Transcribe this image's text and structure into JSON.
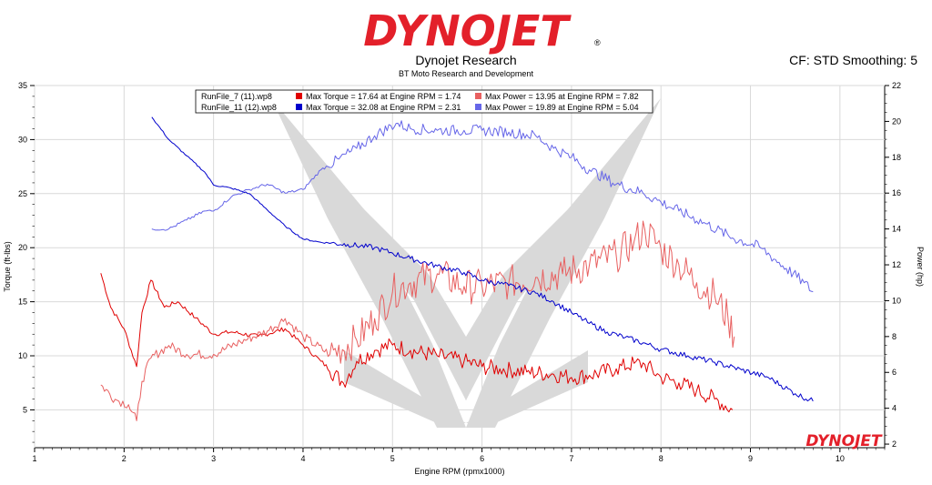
{
  "brand": {
    "logo_text": "DYNOJET",
    "registered_mark": "®",
    "watermark_text": "DYNOJET"
  },
  "header": {
    "title": "Dynojet Research",
    "subtitle": "BT Moto Research and Development",
    "correction_info": "CF: STD Smoothing: 5"
  },
  "colors": {
    "run7_torque": "#e00000",
    "run7_power": "#e86060",
    "run11_torque": "#0000cc",
    "run11_power": "#6666e8",
    "watermark": "#d6d6d6",
    "grid": "#d9d9d9",
    "logo_red": "#e3202a"
  },
  "legend": [
    {
      "file": "RunFile_7 (11).wp8",
      "torque_label": "Max Torque = 17.64 at Engine RPM = 1.74",
      "power_label": "Max Power = 13.95 at Engine RPM = 7.82"
    },
    {
      "file": "RunFile_11 (12).wp8",
      "torque_label": "Max Torque = 32.08 at Engine RPM = 2.31",
      "power_label": "Max Power = 19.89 at Engine RPM = 5.04"
    }
  ],
  "chart_data": {
    "type": "line",
    "title": "Dynojet Research",
    "subtitle": "BT Moto Research and Development",
    "xlabel": "Engine RPM (rpmx1000)",
    "ylabel": "Torque (ft-lbs)",
    "y2label": "Power (hp)",
    "xlim": [
      1,
      10.5
    ],
    "ylim": [
      1.5,
      35
    ],
    "y2lim": [
      1.8,
      22
    ],
    "x_ticks": [
      "1",
      "2",
      "3",
      "4",
      "5",
      "6",
      "7",
      "8",
      "9",
      "10"
    ],
    "y_ticks": [
      "5",
      "10",
      "15",
      "20",
      "25",
      "30",
      "35"
    ],
    "y2_ticks": [
      "2",
      "4",
      "6",
      "8",
      "10",
      "12",
      "14",
      "16",
      "18",
      "20",
      "22"
    ],
    "grid": true,
    "legend_position": "top-left",
    "series": [
      {
        "name": "RunFile_7 (11).wp8",
        "metric": "Max Torque",
        "axis": "left",
        "x": [
          1.74,
          1.85,
          2.0,
          2.14,
          2.2,
          2.3,
          2.45,
          2.6,
          2.8,
          3.0,
          3.2,
          3.5,
          3.8,
          4.0,
          4.2,
          4.45,
          4.6,
          4.8,
          5.0,
          5.2,
          5.5,
          5.8,
          6.0,
          6.2,
          6.5,
          6.8,
          7.0,
          7.2,
          7.5,
          7.7,
          7.82,
          8.0,
          8.2,
          8.4,
          8.6,
          8.8
        ],
        "values": [
          17.64,
          14.5,
          12.5,
          9.0,
          14.0,
          17.0,
          14.5,
          15.0,
          13.5,
          12.0,
          12.2,
          11.8,
          12.5,
          11.0,
          9.5,
          7.5,
          9.5,
          10.5,
          11.0,
          10.5,
          10.0,
          9.5,
          9.0,
          8.8,
          8.5,
          8.3,
          8.0,
          8.2,
          8.8,
          9.3,
          9.2,
          8.0,
          7.5,
          6.8,
          6.0,
          5.0
        ]
      },
      {
        "name": "RunFile_7 (11).wp8",
        "metric": "Max Power",
        "axis": "right",
        "x": [
          1.74,
          1.9,
          2.05,
          2.14,
          2.2,
          2.3,
          2.5,
          2.7,
          3.0,
          3.3,
          3.6,
          3.8,
          4.0,
          4.3,
          4.6,
          4.8,
          5.0,
          5.2,
          5.5,
          5.8,
          6.0,
          6.3,
          6.6,
          6.9,
          7.2,
          7.5,
          7.7,
          7.82,
          8.0,
          8.2,
          8.4,
          8.6,
          8.75,
          8.82
        ],
        "values": [
          5.3,
          4.5,
          4.2,
          3.3,
          5.5,
          6.8,
          7.5,
          7.0,
          7.0,
          7.7,
          8.3,
          9.0,
          8.0,
          7.0,
          7.8,
          9.0,
          10.5,
          11.0,
          11.5,
          10.8,
          10.8,
          11.0,
          11.3,
          11.5,
          12.0,
          12.5,
          13.3,
          13.95,
          12.9,
          12.0,
          11.0,
          10.3,
          9.0,
          8.0
        ]
      },
      {
        "name": "RunFile_11 (12).wp8",
        "metric": "Max Torque",
        "axis": "left",
        "x": [
          2.31,
          2.5,
          2.7,
          2.9,
          3.0,
          3.2,
          3.4,
          3.6,
          3.8,
          4.0,
          4.2,
          4.5,
          4.8,
          5.0,
          5.2,
          5.5,
          5.8,
          6.0,
          6.3,
          6.6,
          6.8,
          7.0,
          7.2,
          7.4,
          7.6,
          7.8,
          8.0,
          8.3,
          8.6,
          8.9,
          9.2,
          9.5,
          9.7
        ],
        "values": [
          32.08,
          30.0,
          28.5,
          27.0,
          25.8,
          25.5,
          25.0,
          23.5,
          22.0,
          20.8,
          20.5,
          20.3,
          20.0,
          19.5,
          19.0,
          18.3,
          17.7,
          17.0,
          16.5,
          15.8,
          15.0,
          14.0,
          13.0,
          12.2,
          11.7,
          11.2,
          10.6,
          10.0,
          9.4,
          8.7,
          8.0,
          6.5,
          5.8
        ]
      },
      {
        "name": "RunFile_11 (12).wp8",
        "metric": "Max Power",
        "axis": "right",
        "x": [
          2.31,
          2.5,
          2.7,
          2.9,
          3.0,
          3.2,
          3.4,
          3.6,
          3.8,
          4.0,
          4.2,
          4.4,
          4.6,
          4.8,
          5.04,
          5.2,
          5.5,
          5.8,
          6.0,
          6.3,
          6.6,
          6.8,
          7.0,
          7.2,
          7.5,
          7.8,
          8.0,
          8.2,
          8.5,
          8.8,
          9.1,
          9.4,
          9.6,
          9.7
        ],
        "values": [
          14.0,
          14.0,
          14.5,
          15.0,
          15.0,
          15.8,
          16.2,
          16.5,
          16.0,
          16.2,
          17.3,
          17.9,
          18.5,
          19.2,
          19.89,
          19.6,
          19.5,
          19.5,
          19.5,
          19.4,
          19.2,
          18.5,
          18.0,
          17.3,
          16.5,
          16.0,
          15.5,
          15.0,
          14.3,
          13.5,
          13.0,
          11.8,
          11.0,
          10.5
        ]
      }
    ]
  }
}
